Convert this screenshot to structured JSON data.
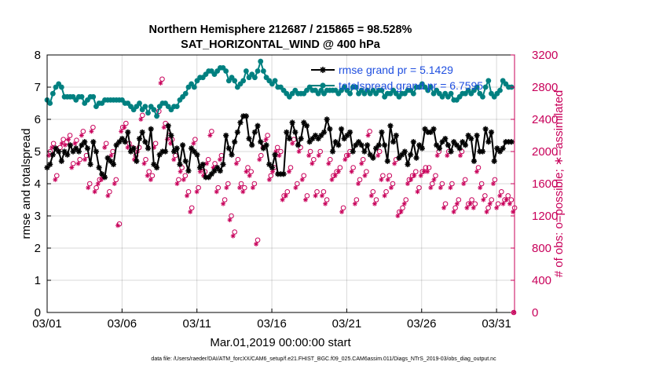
{
  "chart_data": {
    "type": "line",
    "title": "Northern Hemisphere 212687 / 215865 = 98.528%",
    "subtitle": "SAT_HORIZONTAL_WIND @ 400 hPa",
    "xlabel": "Mar.01,2019 00:00:00 start",
    "ylabel": "rmse and totalspread",
    "ylabel_right": "# of obs: o=possible; ∗=assimilated",
    "footnote": "data file: /Users/raeder/DAI/ATM_forcXX/CAM6_setup/f.e21.FHIST_BGC.f09_025.CAM6assim.011/Diags_NTrS_2019-03/obs_diag_output.nc",
    "xlim": [
      0,
      31.2
    ],
    "ylim": [
      0,
      8
    ],
    "ylim_right": [
      0,
      3200
    ],
    "x_ticks": [
      0,
      5,
      10,
      15,
      20,
      25,
      30
    ],
    "x_tick_labels": [
      "03/01",
      "03/06",
      "03/11",
      "03/16",
      "03/21",
      "03/26",
      "03/31"
    ],
    "y_ticks": [
      0,
      1,
      2,
      3,
      4,
      5,
      6,
      7,
      8
    ],
    "y_ticks_right": [
      0,
      400,
      800,
      1200,
      1600,
      2000,
      2400,
      2800,
      3200
    ],
    "grid": true,
    "legend_position": "top-right",
    "x_step_days": 0.25,
    "series": [
      {
        "name": "rmse grand pr = 5.1429",
        "axis": "left",
        "color": "#000000",
        "marker": "asterisk",
        "values": [
          4.5,
          4.6,
          4.9,
          5.1,
          5.0,
          4.7,
          5.0,
          4.9,
          5.2,
          5.0,
          5.1,
          5.0,
          5.2,
          5.3,
          5.1,
          4.6,
          5.3,
          5.0,
          4.5,
          4.3,
          4.2,
          4.8,
          4.7,
          4.6,
          5.2,
          5.3,
          5.4,
          5.3,
          5.6,
          5.0,
          5.1,
          4.7,
          5.4,
          5.6,
          5.3,
          5.1,
          5.7,
          4.6,
          4.5,
          4.9,
          5.0,
          5.0,
          5.8,
          5.5,
          5.0,
          5.1,
          4.6,
          5.2,
          4.7,
          4.4,
          5.1,
          5.0,
          4.9,
          4.5,
          4.6,
          4.2,
          4.2,
          4.3,
          4.4,
          4.5,
          4.4,
          4.6,
          5.5,
          5.1,
          4.9,
          5.3,
          5.6,
          5.9,
          6.1,
          6.1,
          5.4,
          5.2,
          5.6,
          5.8,
          5.3,
          5.1,
          5.2,
          4.6,
          4.5,
          4.9,
          4.3,
          4.3,
          4.3,
          5.6,
          5.4,
          5.9,
          5.6,
          5.2,
          5.4,
          5.9,
          5.8,
          5.3,
          5.4,
          5.5,
          5.4,
          5.5,
          5.6,
          6.0,
          5.7,
          5.0,
          5.3,
          5.2,
          5.7,
          5.4,
          5.5,
          5.6,
          5.0,
          5.2,
          5.3,
          5.2,
          5.0,
          5.2,
          4.9,
          4.8,
          5.1,
          5.2,
          5.6,
          5.2,
          4.7,
          5.8,
          5.3,
          5.5,
          4.8,
          4.9,
          5.0,
          4.6,
          4.9,
          5.3,
          4.8,
          5.2,
          5.1,
          5.7,
          5.6,
          5.6,
          5.7,
          5.2,
          5.1,
          5.3,
          5.4,
          5.2,
          5.0,
          5.3,
          5.2,
          5.1,
          5.3,
          5.2,
          5.5,
          5.4,
          4.7,
          5.5,
          5.0,
          5.0,
          5.7,
          5.3,
          5.6,
          4.7,
          5.1,
          5.0,
          5.1,
          5.3,
          5.3,
          5.3
        ]
      },
      {
        "name": "totalspread grand pr = 6.7595",
        "axis": "left",
        "color": "#008080",
        "marker": "circle-filled",
        "values": [
          6.6,
          6.5,
          6.8,
          7.0,
          7.1,
          7.0,
          6.7,
          6.7,
          6.7,
          6.7,
          6.6,
          6.7,
          6.7,
          6.5,
          6.6,
          6.7,
          6.7,
          6.4,
          6.5,
          6.5,
          6.6,
          6.6,
          6.6,
          6.6,
          6.6,
          6.6,
          6.6,
          6.5,
          6.5,
          6.4,
          6.3,
          6.4,
          6.5,
          6.3,
          6.4,
          6.2,
          6.4,
          6.3,
          6.1,
          6.4,
          6.5,
          6.5,
          6.4,
          6.3,
          6.4,
          6.4,
          6.6,
          6.7,
          6.8,
          7.0,
          7.1,
          7.0,
          7.2,
          7.3,
          7.3,
          7.4,
          7.5,
          7.5,
          7.4,
          7.5,
          7.6,
          7.6,
          7.5,
          7.2,
          7.3,
          7.2,
          7.0,
          7.1,
          7.2,
          7.5,
          7.3,
          7.4,
          7.3,
          7.5,
          7.8,
          7.5,
          7.3,
          7.2,
          7.1,
          7.2,
          7.0,
          7.0,
          6.9,
          6.8,
          6.7,
          6.8,
          6.9,
          6.8,
          6.8,
          6.8,
          6.9,
          7.0,
          6.9,
          6.9,
          6.8,
          6.9,
          6.8,
          6.9,
          6.9,
          6.9,
          6.9,
          6.8,
          6.9,
          7.0,
          6.9,
          6.8,
          7.0,
          7.0,
          6.8,
          6.9,
          6.8,
          6.9,
          6.8,
          6.9,
          6.8,
          6.9,
          6.9,
          6.7,
          6.8,
          6.8,
          6.9,
          6.8,
          6.7,
          6.8,
          6.8,
          6.9,
          6.9,
          6.8,
          7.0,
          7.0,
          7.1,
          7.0,
          6.9,
          7.0,
          6.8,
          6.9,
          6.8,
          6.7,
          6.8,
          6.7,
          6.8,
          6.6,
          6.6,
          6.7,
          6.8,
          6.8,
          6.9,
          6.8,
          6.9,
          7.0,
          6.8,
          6.7,
          7.0,
          7.2,
          6.8,
          6.7,
          6.8,
          6.9,
          7.2,
          7.1,
          7.0,
          7.0
        ]
      },
      {
        "name": "obs possible",
        "axis": "right",
        "color": "#c8005a",
        "marker": "circle-open",
        "values": [
          2000,
          2100,
          1700,
          2050,
          2150,
          2120,
          2200,
          1850,
          2140,
          1900,
          2250,
          1950,
          1600,
          2300,
          1550,
          1650,
          1700,
          2100,
          1500,
          2000,
          1650,
          1100,
          2300,
          2350,
          2100,
          2050,
          1950,
          2050,
          2450,
          1900,
          1750,
          1700,
          2100,
          2500,
          2900,
          2350,
          2200,
          2150,
          1950,
          1650,
          1800,
          1700,
          1500,
          1300,
          2150,
          1550,
          1800,
          1750,
          1900,
          2250,
          1850,
          1550,
          1950,
          1400,
          1600,
          1200,
          1000,
          1900,
          1600,
          1550,
          1800,
          1750,
          1600,
          900,
          1950,
          2100,
          2200,
          1700,
          1800,
          2050,
          2000,
          1450,
          1500,
          1800,
          2150,
          1600,
          2050,
          1700,
          1450,
          2000,
          1900,
          1500,
          2000,
          1500,
          1400,
          1900,
          1700,
          1750,
          1800,
          1300,
          1950,
          2000,
          1800,
          1400,
          1650,
          1900,
          1750,
          2250,
          1500,
          1400,
          2000,
          1700,
          1500,
          1700,
          1600,
          1900,
          1250,
          1300,
          1400,
          1650,
          1700,
          1750,
          1550,
          1750,
          1800,
          1800,
          1600,
          1700,
          2000,
          1600,
          1350,
          2000,
          1600,
          1300,
          1400,
          2000,
          1650,
          1350,
          1400,
          1350,
          1800,
          1600,
          1450,
          1300,
          1400,
          1650,
          1350,
          1500,
          1400,
          1450,
          1400,
          1300
        ]
      },
      {
        "name": "obs assimilated",
        "axis": "right",
        "color": "#c8005a",
        "marker": "asterisk",
        "values": [
          1950,
          2050,
          1650,
          2000,
          2100,
          2080,
          2150,
          1800,
          2100,
          1850,
          2200,
          1900,
          1550,
          2250,
          1500,
          1600,
          1650,
          2050,
          1450,
          1950,
          1600,
          1080,
          2250,
          2300,
          2050,
          2000,
          1900,
          2000,
          2400,
          1850,
          1700,
          1650,
          2050,
          2450,
          2850,
          2300,
          2150,
          2100,
          1900,
          1600,
          1750,
          1650,
          1450,
          1250,
          2100,
          1500,
          1750,
          1700,
          1850,
          2200,
          1800,
          1500,
          1900,
          1350,
          1550,
          1150,
          950,
          1850,
          1550,
          1500,
          1750,
          1700,
          1550,
          850,
          1900,
          2050,
          2150,
          1650,
          1750,
          2000,
          1950,
          1400,
          1450,
          1750,
          2100,
          1550,
          2000,
          1650,
          1400,
          1950,
          1850,
          1450,
          1950,
          1450,
          1350,
          1850,
          1650,
          1700,
          1750,
          1250,
          1900,
          1950,
          1750,
          1350,
          1600,
          1850,
          1700,
          2200,
          1450,
          1350,
          1950,
          1650,
          1450,
          1650,
          1550,
          1850,
          1200,
          1250,
          1350,
          1600,
          1650,
          1700,
          1500,
          1700,
          1750,
          1750,
          1550,
          1650,
          1950,
          1550,
          1300,
          1950,
          1550,
          1250,
          1350,
          1950,
          1600,
          1300,
          1350,
          1300,
          1750,
          1550,
          1400,
          1250,
          1350,
          1600,
          1300,
          1450,
          1350,
          1400,
          1350,
          1250
        ]
      }
    ]
  }
}
